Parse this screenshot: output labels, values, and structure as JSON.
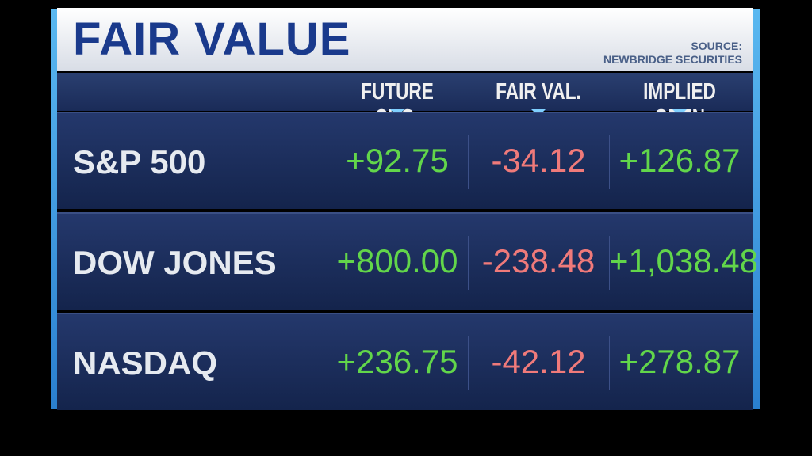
{
  "header": {
    "title": "FAIR VALUE",
    "source_label": "SOURCE:",
    "source": "NEWBRIDGE SECURITIES"
  },
  "table": {
    "columns": [
      "FUTURE CHG.",
      "FAIR VAL.",
      "IMPLIED OPEN"
    ],
    "rows": [
      [
        "S&P 500",
        "+92.75",
        "-34.12",
        "+126.87"
      ],
      [
        "DOW JONES",
        "+800.00",
        "-238.48",
        "+1,038.48"
      ],
      [
        "NASDAQ",
        "+236.75",
        "-42.12",
        "+278.87"
      ]
    ]
  }
}
